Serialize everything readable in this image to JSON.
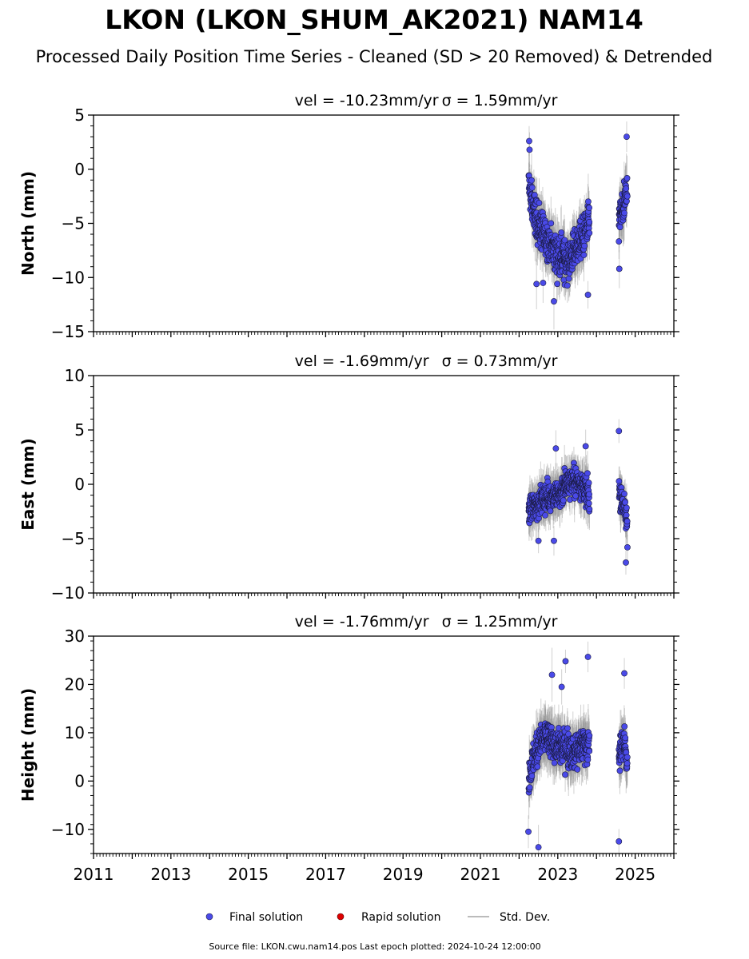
{
  "title": "LKON (LKON_SHUM_AK2021) NAM14",
  "subtitle": "Processed Daily Position Time Series - Cleaned (SD > 20 Removed) & Detrended",
  "footer": "Source file: LKON.cwu.nam14.pos  Last epoch plotted: 2024-10-24 12:00:00",
  "legend": {
    "final": "Final solution",
    "rapid": "Rapid solution",
    "std": "Std. Dev."
  },
  "colors": {
    "final": "#4a4ae8",
    "rapid": "#dd0000",
    "std": "#bbbbbb",
    "marker_edge": "#1a1a40"
  },
  "chart_data": [
    {
      "type": "scatter",
      "component": "north",
      "title_vel": "vel = -10.23mm/yr",
      "title_sigma": "σ = 1.59mm/yr",
      "ylabel": "North (mm)",
      "xlim": [
        2011.0,
        2026.0
      ],
      "ylim": [
        -15,
        5
      ],
      "yticks": [
        5,
        0,
        -5,
        -10,
        -15
      ],
      "yticklabels": [
        "5",
        "0",
        "−5",
        "−10",
        "−15"
      ],
      "series": [
        {
          "x": [
            2022.25,
            2022.32,
            2022.4,
            2022.48,
            2022.56,
            2022.64,
            2022.72,
            2022.8,
            2022.88,
            2022.96,
            2023.04,
            2023.12,
            2023.2,
            2023.28,
            2023.36,
            2023.44,
            2023.52,
            2023.6,
            2023.68,
            2023.76,
            2023.82,
            2024.58,
            2024.64,
            2024.7,
            2024.76,
            2024.8
          ],
          "y": [
            -1.5,
            -3.0,
            -4.0,
            -5.0,
            -5.5,
            -6.0,
            -6.5,
            -7.0,
            -7.5,
            -8.0,
            -8.0,
            -8.0,
            -8.5,
            -8.5,
            -8.0,
            -7.5,
            -7.0,
            -6.5,
            -6.0,
            -5.5,
            -4.5,
            -5.0,
            -4.0,
            -3.5,
            -2.5,
            -1.5
          ],
          "spread": 2.2,
          "sd": 1.8,
          "extremes": [
            [
              2022.26,
              2.6
            ],
            [
              2022.27,
              1.8
            ],
            [
              2022.45,
              -10.6
            ],
            [
              2022.62,
              -10.5
            ],
            [
              2022.9,
              -12.2
            ],
            [
              2023.78,
              -11.6
            ],
            [
              2024.59,
              -9.2
            ],
            [
              2024.78,
              3.0
            ]
          ]
        }
      ]
    },
    {
      "type": "scatter",
      "component": "east",
      "title_vel": "vel = -1.69mm/yr",
      "title_sigma": "σ = 0.73mm/yr",
      "ylabel": "East (mm)",
      "xlim": [
        2011.0,
        2026.0
      ],
      "ylim": [
        -10,
        10
      ],
      "yticks": [
        10,
        5,
        0,
        -5,
        -10
      ],
      "yticklabels": [
        "10",
        "5",
        "0",
        "−5",
        "−10"
      ],
      "series": [
        {
          "x": [
            2022.25,
            2022.32,
            2022.4,
            2022.48,
            2022.56,
            2022.64,
            2022.72,
            2022.8,
            2022.88,
            2022.96,
            2023.04,
            2023.12,
            2023.2,
            2023.28,
            2023.36,
            2023.44,
            2023.52,
            2023.6,
            2023.68,
            2023.76,
            2023.82,
            2024.58,
            2024.64,
            2024.7,
            2024.76,
            2024.8
          ],
          "y": [
            -2.5,
            -2.2,
            -2.0,
            -1.8,
            -1.5,
            -1.3,
            -1.2,
            -1.2,
            -1.0,
            -1.0,
            -1.2,
            -0.5,
            0.0,
            0.2,
            0.3,
            0.3,
            0.2,
            0.0,
            -0.3,
            -0.8,
            -1.2,
            -0.5,
            -1.2,
            -2.0,
            -3.0,
            -3.5
          ],
          "spread": 1.6,
          "sd": 1.5,
          "extremes": [
            [
              2022.5,
              -5.2
            ],
            [
              2022.9,
              -5.2
            ],
            [
              2022.95,
              3.3
            ],
            [
              2023.72,
              3.5
            ],
            [
              2024.58,
              4.9
            ],
            [
              2024.76,
              -7.2
            ],
            [
              2024.8,
              -5.8
            ]
          ]
        }
      ]
    },
    {
      "type": "scatter",
      "component": "height",
      "title_vel": "vel = -1.76mm/yr",
      "title_sigma": "σ = 1.25mm/yr",
      "ylabel": "Height (mm)",
      "xlim": [
        2011.0,
        2026.0
      ],
      "ylim": [
        -15,
        30
      ],
      "yticks": [
        30,
        20,
        10,
        0,
        -10
      ],
      "yticklabels": [
        "30",
        "20",
        "10",
        "0",
        "−10"
      ],
      "xticks": [
        2011,
        2013,
        2015,
        2017,
        2019,
        2021,
        2023,
        2025
      ],
      "xticklabels": [
        "2011",
        "2013",
        "2015",
        "2017",
        "2019",
        "2021",
        "2023",
        "2025"
      ],
      "series": [
        {
          "x": [
            2022.25,
            2022.32,
            2022.4,
            2022.48,
            2022.56,
            2022.64,
            2022.72,
            2022.8,
            2022.88,
            2022.96,
            2023.04,
            2023.12,
            2023.2,
            2023.28,
            2023.36,
            2023.44,
            2023.52,
            2023.6,
            2023.68,
            2023.76,
            2023.82,
            2024.58,
            2024.64,
            2024.7,
            2024.76,
            2024.8
          ],
          "y": [
            0.0,
            3.0,
            5.0,
            7.0,
            8.0,
            9.0,
            9.0,
            8.0,
            8.0,
            7.0,
            7.0,
            7.0,
            7.0,
            6.5,
            6.0,
            6.0,
            6.0,
            7.0,
            8.0,
            8.0,
            7.0,
            5.0,
            7.0,
            8.0,
            6.0,
            4.0
          ],
          "spread": 4.5,
          "sd": 4.0,
          "extremes": [
            [
              2022.24,
              -10.5
            ],
            [
              2022.5,
              -13.7
            ],
            [
              2022.85,
              22.0
            ],
            [
              2023.1,
              19.5
            ],
            [
              2023.2,
              24.8
            ],
            [
              2023.78,
              25.7
            ],
            [
              2024.58,
              -12.5
            ],
            [
              2024.72,
              22.3
            ]
          ]
        }
      ]
    }
  ]
}
